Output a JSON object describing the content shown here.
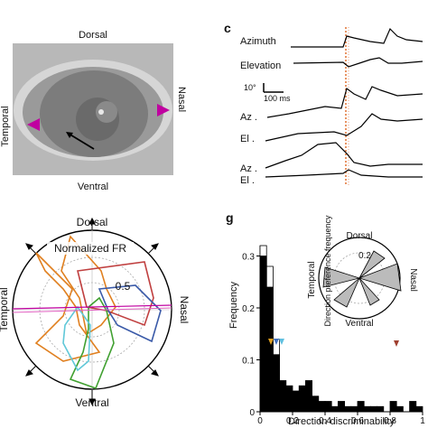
{
  "panel_eye": {
    "dorsal": "Dorsal",
    "ventral": "Ventral",
    "temporal": "Temporal",
    "nasal": "Nasal",
    "arrow_color": "#c000a0"
  },
  "panel_c": {
    "letter": "c",
    "azimuth": "Azimuth",
    "elevation": "Elevation",
    "az1": "Az .",
    "el1": "El .",
    "az2": "Az .",
    "el2": "El .",
    "scale_deg": "10°",
    "scale_ms": "100 ms",
    "marker_color": "#e07030"
  },
  "panel_polar": {
    "dorsal": "Dorsal",
    "ventral": "Ventral",
    "temporal": "Temporal",
    "nasal": "Nasal",
    "legend": "Normalized FR",
    "ring_label": "0.5",
    "colors": [
      "#c0306a",
      "#e08020",
      "#3a5aa8",
      "#40a030",
      "#60c8d8",
      "#c04040"
    ]
  },
  "panel_g": {
    "letter": "g",
    "ylabel": "Frequency",
    "xlabel": "Direction discriminability",
    "yticks": [
      "0",
      "0.1",
      "0.2",
      "0.3"
    ],
    "xticks": [
      "0",
      "0.2",
      "0.4",
      "0.6",
      "0.8",
      "1"
    ],
    "inset_dorsal": "Dorsal",
    "inset_ventral": "Ventral",
    "inset_temporal": "Temporal",
    "inset_nasal": "Nasal",
    "inset_title": "Direction preference frequency",
    "inset_ring": "0.2",
    "marker_colors": [
      "#e0a020",
      "#4070c0",
      "#60c0e0",
      "#a04030"
    ]
  },
  "chart_data": {
    "type": "bar",
    "xlabel": "Direction discriminability",
    "ylabel": "Frequency",
    "ylim": [
      0,
      0.32
    ],
    "xlim": [
      0,
      1
    ],
    "series": [
      {
        "values": [
          0.3,
          0.24,
          0.11,
          0.06,
          0.05,
          0.04,
          0.05,
          0.06,
          0.03,
          0.02,
          0.02,
          0.01,
          0.02,
          0.01,
          0.01,
          0.02,
          0.01,
          0.01,
          0.01,
          0.0,
          0.02,
          0.01,
          0.0,
          0.02,
          0.01
        ],
        "fill": "#000000"
      },
      {
        "values": [
          0.32,
          0.28,
          0.14
        ],
        "fill": "#ffffff"
      }
    ],
    "bin_width": 0.04
  }
}
